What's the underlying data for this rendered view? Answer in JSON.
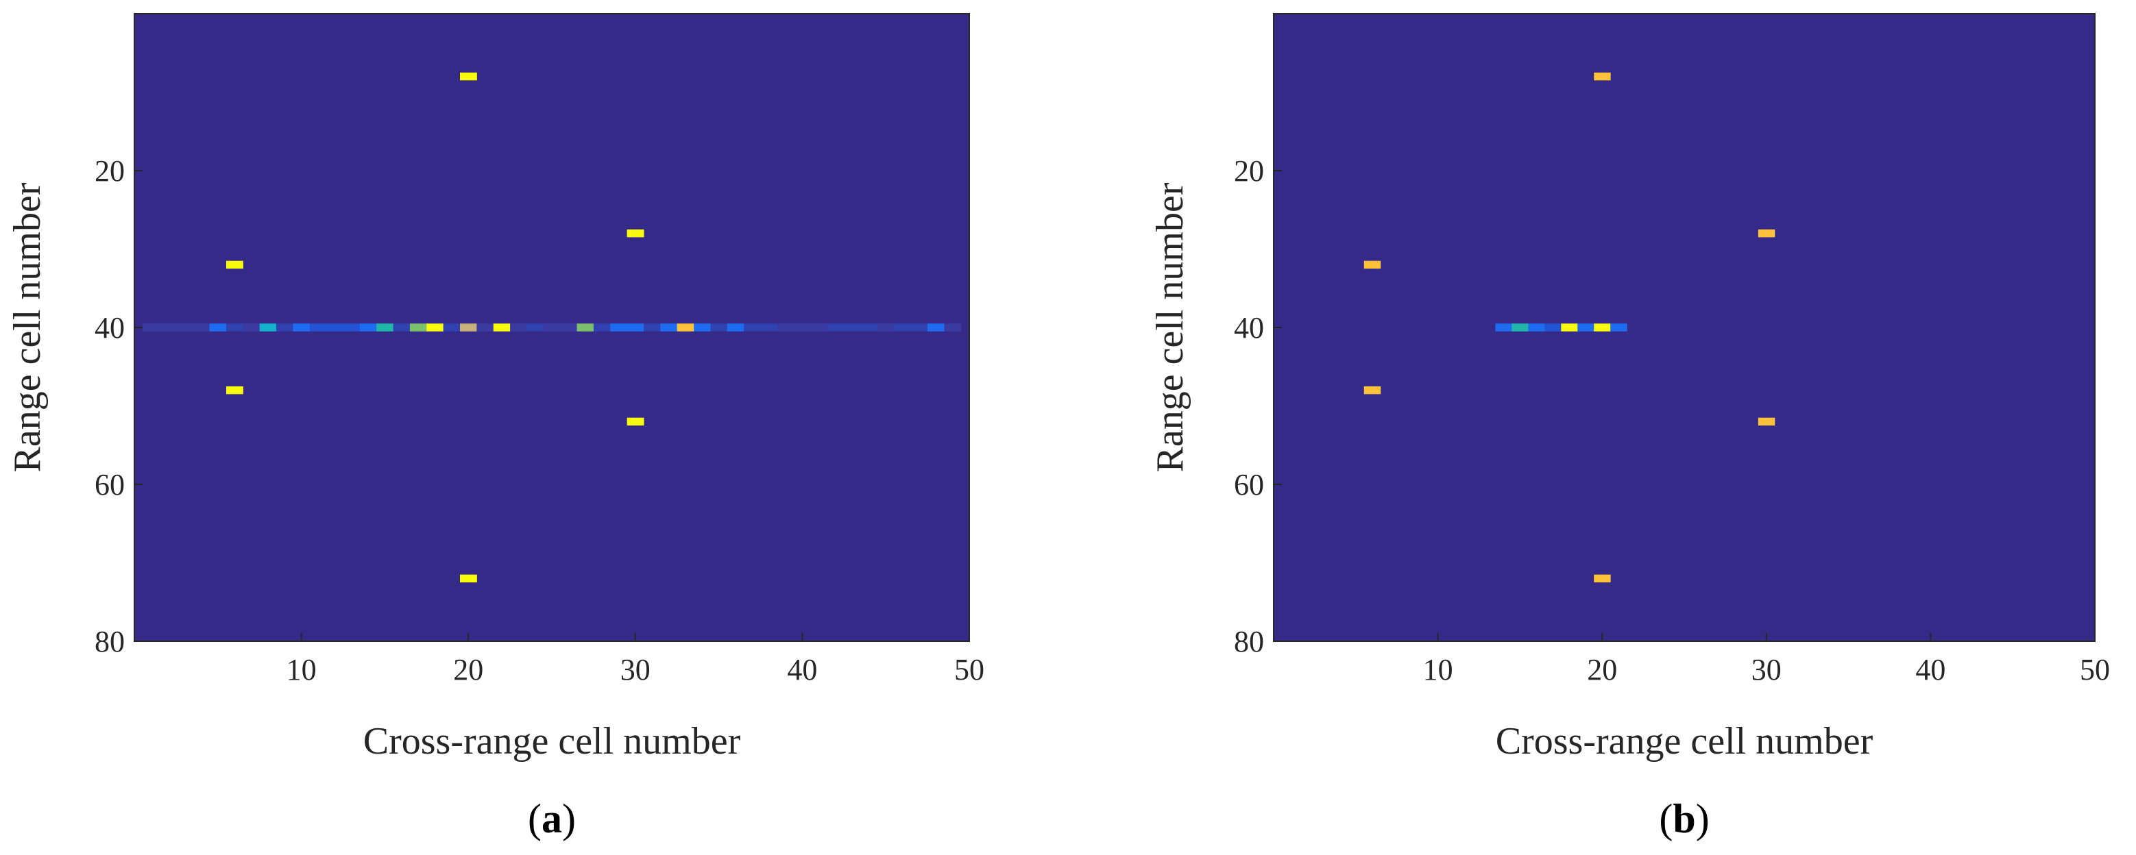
{
  "chart_data": [
    {
      "type": "heatmap",
      "panel_label": "a",
      "caption": {
        "open": "(",
        "letter": "a",
        "close": ")"
      },
      "xlabel": "Cross-range cell number",
      "ylabel": "Range cell number",
      "xlim": [
        0,
        50
      ],
      "ylim": [
        0,
        80
      ],
      "y_reversed": true,
      "xticks": [
        10,
        20,
        30,
        40,
        50
      ],
      "yticks": [
        20,
        40,
        60,
        80
      ],
      "grid": false,
      "background_color": "#352a87",
      "colors": {
        "yellow": "#f9fb0e",
        "orange": "#fdc23a",
        "cyan": "#12b2cc",
        "blue": "#1e6df0",
        "deepblue": "#2452d5",
        "mediumblue": "#2f42b0",
        "teal": "#1fb8a8",
        "green": "#7cc06b",
        "tan": "#c9b27a",
        "dim": "#3a3aa0"
      },
      "cells": [
        {
          "x": 20,
          "y": 8,
          "color": "yellow"
        },
        {
          "x": 6,
          "y": 32,
          "color": "yellow"
        },
        {
          "x": 30,
          "y": 28,
          "color": "yellow"
        },
        {
          "x": 6,
          "y": 48,
          "color": "yellow"
        },
        {
          "x": 30,
          "y": 52,
          "color": "yellow"
        },
        {
          "x": 20,
          "y": 72,
          "color": "yellow"
        },
        {
          "x": 1,
          "y": 40,
          "color": "dim"
        },
        {
          "x": 2,
          "y": 40,
          "color": "dim"
        },
        {
          "x": 3,
          "y": 40,
          "color": "dim"
        },
        {
          "x": 4,
          "y": 40,
          "color": "dim"
        },
        {
          "x": 5,
          "y": 40,
          "color": "blue"
        },
        {
          "x": 6,
          "y": 40,
          "color": "mediumblue"
        },
        {
          "x": 7,
          "y": 40,
          "color": "dim"
        },
        {
          "x": 8,
          "y": 40,
          "color": "cyan"
        },
        {
          "x": 9,
          "y": 40,
          "color": "mediumblue"
        },
        {
          "x": 10,
          "y": 40,
          "color": "blue"
        },
        {
          "x": 11,
          "y": 40,
          "color": "deepblue"
        },
        {
          "x": 12,
          "y": 40,
          "color": "deepblue"
        },
        {
          "x": 13,
          "y": 40,
          "color": "deepblue"
        },
        {
          "x": 14,
          "y": 40,
          "color": "blue"
        },
        {
          "x": 15,
          "y": 40,
          "color": "teal"
        },
        {
          "x": 16,
          "y": 40,
          "color": "mediumblue"
        },
        {
          "x": 17,
          "y": 40,
          "color": "green"
        },
        {
          "x": 18,
          "y": 40,
          "color": "yellow"
        },
        {
          "x": 19,
          "y": 40,
          "color": "mediumblue"
        },
        {
          "x": 20,
          "y": 40,
          "color": "tan"
        },
        {
          "x": 21,
          "y": 40,
          "color": "dim"
        },
        {
          "x": 22,
          "y": 40,
          "color": "yellow"
        },
        {
          "x": 23,
          "y": 40,
          "color": "dim"
        },
        {
          "x": 24,
          "y": 40,
          "color": "mediumblue"
        },
        {
          "x": 25,
          "y": 40,
          "color": "dim"
        },
        {
          "x": 26,
          "y": 40,
          "color": "dim"
        },
        {
          "x": 27,
          "y": 40,
          "color": "green"
        },
        {
          "x": 28,
          "y": 40,
          "color": "mediumblue"
        },
        {
          "x": 29,
          "y": 40,
          "color": "blue"
        },
        {
          "x": 30,
          "y": 40,
          "color": "blue"
        },
        {
          "x": 31,
          "y": 40,
          "color": "mediumblue"
        },
        {
          "x": 32,
          "y": 40,
          "color": "blue"
        },
        {
          "x": 33,
          "y": 40,
          "color": "orange"
        },
        {
          "x": 34,
          "y": 40,
          "color": "blue"
        },
        {
          "x": 35,
          "y": 40,
          "color": "mediumblue"
        },
        {
          "x": 36,
          "y": 40,
          "color": "blue"
        },
        {
          "x": 37,
          "y": 40,
          "color": "mediumblue"
        },
        {
          "x": 38,
          "y": 40,
          "color": "mediumblue"
        },
        {
          "x": 39,
          "y": 40,
          "color": "dim"
        },
        {
          "x": 40,
          "y": 40,
          "color": "dim"
        },
        {
          "x": 41,
          "y": 40,
          "color": "dim"
        },
        {
          "x": 42,
          "y": 40,
          "color": "mediumblue"
        },
        {
          "x": 43,
          "y": 40,
          "color": "mediumblue"
        },
        {
          "x": 44,
          "y": 40,
          "color": "mediumblue"
        },
        {
          "x": 45,
          "y": 40,
          "color": "dim"
        },
        {
          "x": 46,
          "y": 40,
          "color": "mediumblue"
        },
        {
          "x": 47,
          "y": 40,
          "color": "mediumblue"
        },
        {
          "x": 48,
          "y": 40,
          "color": "blue"
        },
        {
          "x": 49,
          "y": 40,
          "color": "dim"
        }
      ]
    },
    {
      "type": "heatmap",
      "panel_label": "b",
      "caption": {
        "open": "(",
        "letter": "b",
        "close": ")"
      },
      "xlabel": "Cross-range cell number",
      "ylabel": "Range cell number",
      "xlim": [
        0,
        50
      ],
      "ylim": [
        0,
        80
      ],
      "y_reversed": true,
      "xticks": [
        10,
        20,
        30,
        40,
        50
      ],
      "yticks": [
        20,
        40,
        60,
        80
      ],
      "grid": false,
      "background_color": "#352a87",
      "colors": {
        "yellow": "#f9fb0e",
        "orange": "#fdc23a",
        "cyan": "#12b2cc",
        "blue": "#1e6df0",
        "deepblue": "#2452d5",
        "mediumblue": "#2f42b0",
        "teal": "#1fb8a8",
        "dim": "#3a3aa0"
      },
      "cells": [
        {
          "x": 20,
          "y": 8,
          "color": "orange"
        },
        {
          "x": 6,
          "y": 32,
          "color": "orange"
        },
        {
          "x": 30,
          "y": 28,
          "color": "orange"
        },
        {
          "x": 6,
          "y": 48,
          "color": "orange"
        },
        {
          "x": 30,
          "y": 52,
          "color": "orange"
        },
        {
          "x": 20,
          "y": 72,
          "color": "orange"
        },
        {
          "x": 14,
          "y": 40,
          "color": "blue"
        },
        {
          "x": 15,
          "y": 40,
          "color": "teal"
        },
        {
          "x": 16,
          "y": 40,
          "color": "blue"
        },
        {
          "x": 17,
          "y": 40,
          "color": "deepblue"
        },
        {
          "x": 18,
          "y": 40,
          "color": "yellow"
        },
        {
          "x": 19,
          "y": 40,
          "color": "blue"
        },
        {
          "x": 20,
          "y": 40,
          "color": "yellow"
        },
        {
          "x": 21,
          "y": 40,
          "color": "blue"
        }
      ]
    }
  ]
}
